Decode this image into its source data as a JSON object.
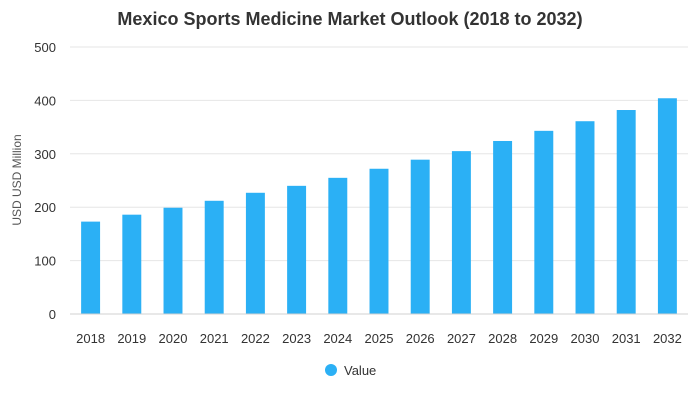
{
  "chart_data": {
    "type": "bar",
    "title": "Mexico Sports Medicine Market Outlook (2018 to 2032)",
    "xlabel": "",
    "ylabel": "USD USD Million",
    "ylim": [
      0,
      500
    ],
    "yticks": [
      0,
      100,
      200,
      300,
      400,
      500
    ],
    "grid": true,
    "legend_position": "bottom",
    "categories": [
      "2018",
      "2019",
      "2020",
      "2021",
      "2022",
      "2023",
      "2024",
      "2025",
      "2026",
      "2027",
      "2028",
      "2029",
      "2030",
      "2031",
      "2032"
    ],
    "series": [
      {
        "name": "Value",
        "color": "#2bb0f5",
        "values": [
          173,
          186,
          199,
          212,
          227,
          240,
          255,
          272,
          289,
          305,
          324,
          343,
          361,
          382,
          404
        ]
      }
    ]
  }
}
